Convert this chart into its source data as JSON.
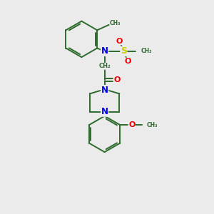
{
  "bg_color": "#ebebeb",
  "bond_color": "#2d6b2d",
  "N_color": "#0000ee",
  "O_color": "#ee0000",
  "S_color": "#cccc00",
  "figsize": [
    3.0,
    3.0
  ],
  "dpi": 100,
  "xlim": [
    0,
    10
  ],
  "ylim": [
    0,
    10
  ]
}
